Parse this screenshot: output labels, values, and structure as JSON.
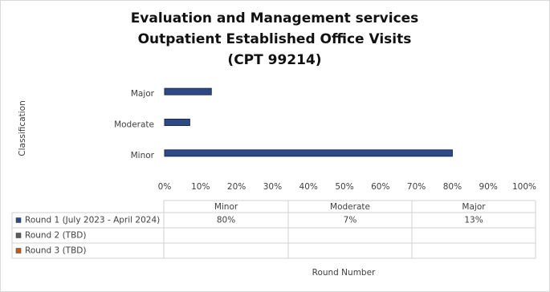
{
  "chart_data": {
    "type": "bar",
    "orientation": "horizontal",
    "title": [
      "Evaluation and Management services",
      "Outpatient Established Office Visits",
      "(CPT 99214)"
    ],
    "y_label": "Classification",
    "x_label": "Round Number",
    "categories": [
      "Minor",
      "Moderate",
      "Major"
    ],
    "series": [
      {
        "name": "Round 1 (July 2023 - April 2024)",
        "color": "#2e4a86",
        "values": [
          80,
          7,
          13
        ],
        "value_labels": [
          "80%",
          "7%",
          "13%"
        ]
      },
      {
        "name": "Round 2 (TBD)",
        "color": "#5a5a5a",
        "values": [
          null,
          null,
          null
        ]
      },
      {
        "name": "Round 3 (TBD)",
        "color": "#c55a11",
        "values": [
          null,
          null,
          null
        ]
      }
    ],
    "xlim": [
      0,
      100
    ],
    "xticks": [
      {
        "value": 0,
        "label": "0%"
      },
      {
        "value": 10,
        "label": "10%"
      },
      {
        "value": 20,
        "label": "20%"
      },
      {
        "value": 30,
        "label": "30%"
      },
      {
        "value": 40,
        "label": "40%"
      },
      {
        "value": 50,
        "label": "50%"
      },
      {
        "value": 60,
        "label": "60%"
      },
      {
        "value": 70,
        "label": "70%"
      },
      {
        "value": 80,
        "label": "80%"
      },
      {
        "value": 90,
        "label": "90%"
      },
      {
        "value": 100,
        "label": "100%"
      }
    ],
    "grid": false
  }
}
